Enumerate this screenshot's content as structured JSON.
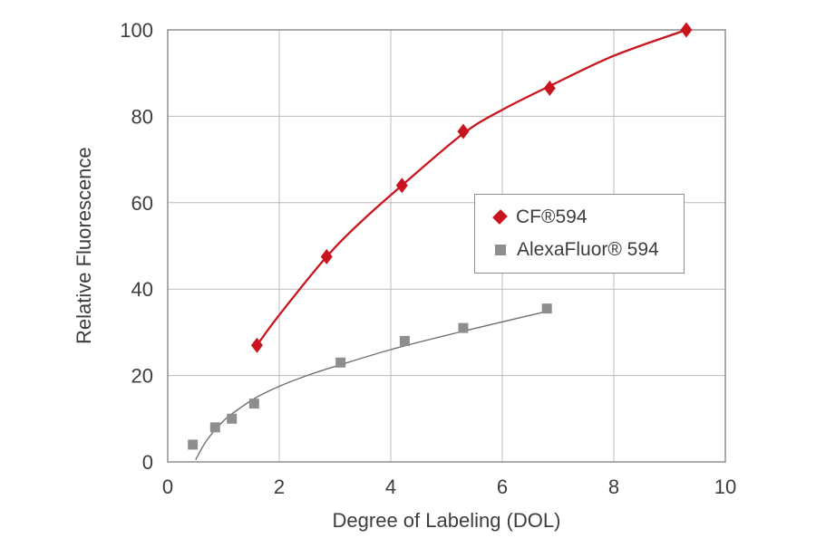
{
  "chart_data": {
    "type": "scatter",
    "title": "",
    "xlabel": "Degree of Labeling (DOL)",
    "ylabel": "Relative Fluorescence",
    "xlim": [
      0,
      10
    ],
    "ylim": [
      0,
      100
    ],
    "xticks": [
      0,
      2,
      4,
      6,
      8,
      10
    ],
    "yticks": [
      0,
      20,
      40,
      60,
      80,
      100
    ],
    "grid": true,
    "legend_position": "center-right",
    "series": [
      {
        "name": "CF®594",
        "marker": "diamond",
        "color": "#c9151e",
        "line_color": "#c9151e",
        "line_width": 2.3,
        "points": [
          [
            1.6,
            27
          ],
          [
            2.85,
            47.5
          ],
          [
            4.2,
            64
          ],
          [
            5.3,
            76.5
          ],
          [
            6.85,
            86.5
          ],
          [
            9.3,
            100
          ]
        ],
        "trend": [
          [
            1.6,
            27
          ],
          [
            2.0,
            34
          ],
          [
            2.85,
            47.5
          ],
          [
            3.5,
            56
          ],
          [
            4.2,
            64
          ],
          [
            5.3,
            76
          ],
          [
            6.0,
            81.5
          ],
          [
            6.85,
            87
          ],
          [
            8.0,
            94
          ],
          [
            9.3,
            100
          ]
        ]
      },
      {
        "name": "AlexaFluor® 594",
        "marker": "square",
        "color": "#8e8e8e",
        "line_color": "#6f6f6f",
        "line_width": 1.4,
        "points": [
          [
            0.45,
            4
          ],
          [
            0.85,
            8
          ],
          [
            1.15,
            10
          ],
          [
            1.55,
            13.5
          ],
          [
            3.1,
            23
          ],
          [
            4.25,
            28
          ],
          [
            5.3,
            31
          ],
          [
            6.8,
            35.5
          ]
        ],
        "trend": [
          [
            0.5,
            0.5
          ],
          [
            0.7,
            5
          ],
          [
            1.0,
            9.5
          ],
          [
            1.3,
            12.5
          ],
          [
            1.6,
            15
          ],
          [
            2.0,
            17.5
          ],
          [
            2.5,
            20
          ],
          [
            3.1,
            22.5
          ],
          [
            4.0,
            26
          ],
          [
            4.9,
            29
          ],
          [
            5.8,
            31.8
          ],
          [
            6.85,
            35
          ]
        ]
      }
    ]
  }
}
